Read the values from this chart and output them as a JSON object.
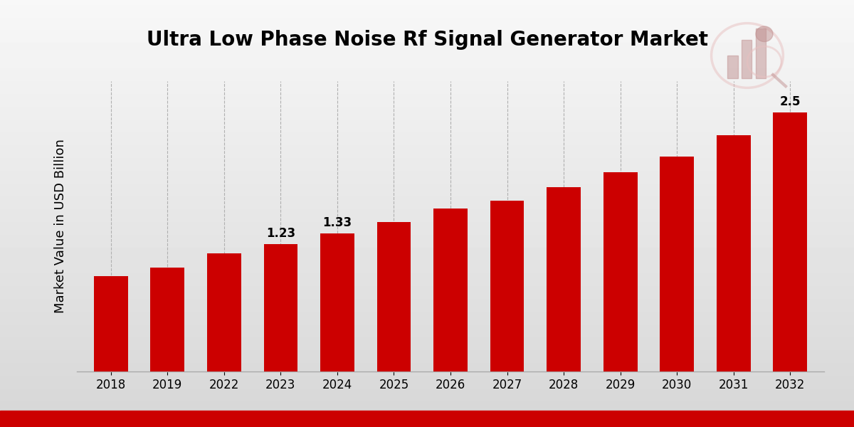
{
  "title": "Ultra Low Phase Noise Rf Signal Generator Market",
  "ylabel": "Market Value in USD Billion",
  "categories": [
    "2018",
    "2019",
    "2022",
    "2023",
    "2024",
    "2025",
    "2026",
    "2027",
    "2028",
    "2029",
    "2030",
    "2031",
    "2032"
  ],
  "values": [
    0.92,
    1.0,
    1.14,
    1.23,
    1.33,
    1.44,
    1.57,
    1.65,
    1.78,
    1.92,
    2.07,
    2.28,
    2.5
  ],
  "bar_color": "#cc0000",
  "bar_labels": [
    null,
    null,
    null,
    "1.23",
    "1.33",
    null,
    null,
    null,
    null,
    null,
    null,
    null,
    "2.5"
  ],
  "ylim": [
    0,
    2.8
  ],
  "title_fontsize": 20,
  "ylabel_fontsize": 13,
  "tick_fontsize": 12,
  "label_fontsize": 12,
  "fig_bg_top": "#f0f0f0",
  "fig_bg_bottom": "#d8d8d8",
  "grid_color": "#b0b0b0",
  "bottom_bar_color": "#cc0000",
  "bottom_bar_height": 0.038
}
